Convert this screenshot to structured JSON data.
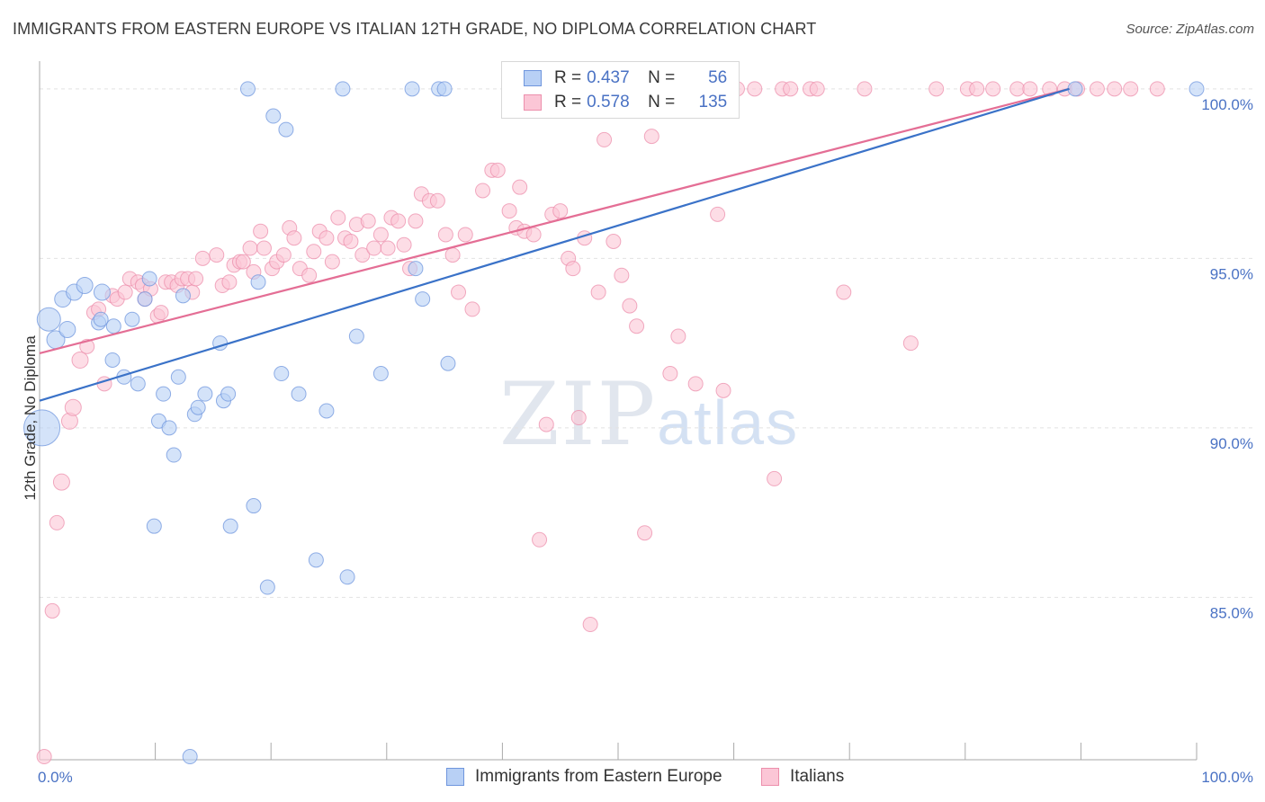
{
  "title": "IMMIGRANTS FROM EASTERN EUROPE VS ITALIAN 12TH GRADE, NO DIPLOMA CORRELATION CHART",
  "source": "Source: ZipAtlas.com",
  "watermark": {
    "zip": "ZIP",
    "atlas": "atlas"
  },
  "legend": {
    "r_label": "R =",
    "n_label": "N =",
    "series": [
      {
        "name": "Immigrants from Eastern Europe",
        "r": "0.437",
        "n": "56",
        "fill": "#b8d0f5",
        "stroke": "#6f96dd"
      },
      {
        "name": "Italians",
        "r": "0.578",
        "n": "135",
        "fill": "#fbc6d6",
        "stroke": "#ec8fac"
      }
    ]
  },
  "chart_data": {
    "type": "scatter",
    "ylabel": "12th Grade, No Diploma",
    "xlim": [
      0,
      100
    ],
    "ylim": [
      80.5,
      100.5
    ],
    "x_tick_labels": [
      "0.0%",
      "100.0%"
    ],
    "y_ticks": [
      {
        "value": 85,
        "label": "85.0%"
      },
      {
        "value": 90,
        "label": "90.0%"
      },
      {
        "value": 95,
        "label": "95.0%"
      },
      {
        "value": 100,
        "label": "100.0%"
      }
    ],
    "colors": {
      "blue": "#6f96dd",
      "blue_fill": "#b8d0f5",
      "blue_line": "#3a72c8",
      "pink": "#ec8fac",
      "pink_fill": "#fbc6d6",
      "pink_line": "#e46e95",
      "tick_text": "#4a72c4",
      "grid": "#e2e2e2"
    },
    "series": [
      {
        "name": "Immigrants from Eastern Europe",
        "trend": [
          [
            0,
            90.8
          ],
          [
            89,
            100
          ]
        ],
        "points": [
          [
            0.2,
            90.0,
            20
          ],
          [
            0.8,
            93.2,
            13
          ],
          [
            1.4,
            92.6,
            10
          ],
          [
            2,
            93.8,
            9
          ],
          [
            2.4,
            92.9,
            9
          ],
          [
            3,
            94,
            9
          ],
          [
            3.9,
            94.2,
            9
          ],
          [
            5.1,
            93.1,
            8
          ],
          [
            5.3,
            93.2,
            8
          ],
          [
            5.4,
            94,
            9
          ],
          [
            6.3,
            92,
            8
          ],
          [
            6.4,
            93,
            8
          ],
          [
            7.3,
            91.5,
            8
          ],
          [
            8,
            93.2,
            8
          ],
          [
            8.5,
            91.3,
            8
          ],
          [
            9.1,
            93.8,
            8
          ],
          [
            9.5,
            94.4,
            8
          ],
          [
            9.9,
            87.1,
            8
          ],
          [
            10.3,
            90.2,
            8
          ],
          [
            10.7,
            91,
            8
          ],
          [
            11.2,
            90,
            8
          ],
          [
            11.6,
            89.2,
            8
          ],
          [
            12,
            91.5,
            8
          ],
          [
            12.4,
            93.9,
            8
          ],
          [
            13,
            80.3,
            8
          ],
          [
            13.4,
            90.4,
            8
          ],
          [
            13.7,
            90.6,
            8
          ],
          [
            14.3,
            91,
            8
          ],
          [
            15.6,
            92.5,
            8
          ],
          [
            15.9,
            90.8,
            8
          ],
          [
            16.3,
            91,
            8
          ],
          [
            16.5,
            87.1,
            8
          ],
          [
            18,
            100,
            8
          ],
          [
            18.5,
            87.7,
            8
          ],
          [
            18.9,
            94.3,
            8
          ],
          [
            19.7,
            85.3,
            8
          ],
          [
            20.2,
            99.2,
            8
          ],
          [
            20.9,
            91.6,
            8
          ],
          [
            21.3,
            98.8,
            8
          ],
          [
            22.4,
            91,
            8
          ],
          [
            23.9,
            86.1,
            8
          ],
          [
            24.8,
            90.5,
            8
          ],
          [
            26.2,
            100,
            8
          ],
          [
            26.6,
            85.6,
            8
          ],
          [
            27.4,
            92.7,
            8
          ],
          [
            29.5,
            91.6,
            8
          ],
          [
            32.2,
            100,
            8
          ],
          [
            32.5,
            94.7,
            8
          ],
          [
            33.1,
            93.8,
            8
          ],
          [
            34.5,
            100,
            8
          ],
          [
            35,
            100,
            8
          ],
          [
            35.3,
            91.9,
            8
          ],
          [
            89.5,
            100,
            8
          ],
          [
            100,
            100,
            8
          ]
        ]
      },
      {
        "name": "Italians",
        "trend": [
          [
            0,
            92.2
          ],
          [
            89,
            100
          ]
        ],
        "points": [
          [
            0.4,
            80.3,
            8
          ],
          [
            1.1,
            84.6,
            8
          ],
          [
            1.5,
            87.2,
            8
          ],
          [
            1.9,
            88.4,
            9
          ],
          [
            2.6,
            90.2,
            9
          ],
          [
            2.9,
            90.6,
            9
          ],
          [
            3.5,
            92,
            9
          ],
          [
            4.1,
            92.4,
            8
          ],
          [
            4.7,
            93.4,
            8
          ],
          [
            5.1,
            93.5,
            8
          ],
          [
            5.6,
            91.3,
            8
          ],
          [
            6.3,
            93.9,
            8
          ],
          [
            6.7,
            93.8,
            8
          ],
          [
            7.4,
            94,
            8
          ],
          [
            7.8,
            94.4,
            8
          ],
          [
            8.5,
            94.3,
            8
          ],
          [
            8.9,
            94.2,
            8
          ],
          [
            9.1,
            93.8,
            8
          ],
          [
            9.6,
            94.1,
            8
          ],
          [
            10.2,
            93.3,
            8
          ],
          [
            10.5,
            93.4,
            8
          ],
          [
            10.9,
            94.3,
            8
          ],
          [
            11.4,
            94.3,
            8
          ],
          [
            11.9,
            94.2,
            8
          ],
          [
            12.3,
            94.4,
            8
          ],
          [
            12.8,
            94.4,
            8
          ],
          [
            13.2,
            94,
            8
          ],
          [
            13.5,
            94.4,
            8
          ],
          [
            14.1,
            95,
            8
          ],
          [
            15.3,
            95.1,
            8
          ],
          [
            15.8,
            94.2,
            8
          ],
          [
            16.4,
            94.3,
            8
          ],
          [
            16.8,
            94.8,
            8
          ],
          [
            17.3,
            94.9,
            8
          ],
          [
            17.6,
            94.9,
            8
          ],
          [
            18.2,
            95.3,
            8
          ],
          [
            18.5,
            94.6,
            8
          ],
          [
            19.1,
            95.8,
            8
          ],
          [
            19.4,
            95.3,
            8
          ],
          [
            20.1,
            94.7,
            8
          ],
          [
            20.5,
            94.9,
            8
          ],
          [
            21.1,
            95.1,
            8
          ],
          [
            21.6,
            95.9,
            8
          ],
          [
            22,
            95.6,
            8
          ],
          [
            22.5,
            94.7,
            8
          ],
          [
            23.3,
            94.5,
            8
          ],
          [
            23.7,
            95.2,
            8
          ],
          [
            24.2,
            95.8,
            8
          ],
          [
            24.8,
            95.6,
            8
          ],
          [
            25.3,
            94.9,
            8
          ],
          [
            25.8,
            96.2,
            8
          ],
          [
            26.4,
            95.6,
            8
          ],
          [
            26.9,
            95.5,
            8
          ],
          [
            27.4,
            96,
            8
          ],
          [
            27.9,
            95.1,
            8
          ],
          [
            28.4,
            96.1,
            8
          ],
          [
            28.9,
            95.3,
            8
          ],
          [
            29.5,
            95.7,
            8
          ],
          [
            30.1,
            95.3,
            8
          ],
          [
            30.4,
            96.2,
            8
          ],
          [
            31,
            96.1,
            8
          ],
          [
            31.5,
            95.4,
            8
          ],
          [
            32,
            94.7,
            8
          ],
          [
            32.5,
            96.1,
            8
          ],
          [
            33,
            96.9,
            8
          ],
          [
            33.7,
            96.7,
            8
          ],
          [
            34.4,
            96.7,
            8
          ],
          [
            35.1,
            95.7,
            8
          ],
          [
            35.7,
            95.1,
            8
          ],
          [
            36.2,
            94,
            8
          ],
          [
            36.8,
            95.7,
            8
          ],
          [
            37.4,
            93.5,
            8
          ],
          [
            38.3,
            97,
            8
          ],
          [
            39.1,
            97.6,
            8
          ],
          [
            39.6,
            97.6,
            8
          ],
          [
            40.6,
            96.4,
            8
          ],
          [
            41.2,
            95.9,
            8
          ],
          [
            41.5,
            97.1,
            8
          ],
          [
            41.9,
            95.8,
            8
          ],
          [
            42.7,
            95.7,
            8
          ],
          [
            43.2,
            86.7,
            8
          ],
          [
            43.8,
            90.1,
            8
          ],
          [
            44.3,
            96.3,
            8
          ],
          [
            45,
            96.4,
            8
          ],
          [
            45.7,
            95,
            8
          ],
          [
            46.1,
            94.7,
            8
          ],
          [
            46.6,
            90.3,
            8
          ],
          [
            47.1,
            95.6,
            8
          ],
          [
            47.6,
            84.2,
            8
          ],
          [
            48.3,
            94,
            8
          ],
          [
            48.8,
            98.5,
            8
          ],
          [
            49.6,
            95.5,
            8
          ],
          [
            50.3,
            94.5,
            8
          ],
          [
            51,
            93.6,
            8
          ],
          [
            51.6,
            93,
            8
          ],
          [
            51.8,
            99.5,
            8
          ],
          [
            52.3,
            86.9,
            8
          ],
          [
            52.9,
            98.6,
            8
          ],
          [
            53.4,
            99.7,
            8
          ],
          [
            54,
            99.6,
            8
          ],
          [
            54.7,
            100,
            8
          ],
          [
            55.3,
            99.9,
            8
          ],
          [
            56,
            100,
            8
          ],
          [
            57.2,
            100,
            8
          ],
          [
            58.8,
            100,
            8
          ],
          [
            60.3,
            100,
            8
          ],
          [
            61.8,
            100,
            8
          ],
          [
            63.5,
            88.5,
            8
          ],
          [
            64.2,
            100,
            8
          ],
          [
            64.9,
            100,
            8
          ],
          [
            66.6,
            100,
            8
          ],
          [
            67.2,
            100,
            8
          ],
          [
            69.5,
            94,
            8
          ],
          [
            71.3,
            100,
            8
          ],
          [
            75.3,
            92.5,
            8
          ],
          [
            77.5,
            100,
            8
          ],
          [
            80.2,
            100,
            8
          ],
          [
            81,
            100,
            8
          ],
          [
            82.4,
            100,
            8
          ],
          [
            84.5,
            100,
            8
          ],
          [
            85.6,
            100,
            8
          ],
          [
            87.3,
            100,
            8
          ],
          [
            88.6,
            100,
            8
          ],
          [
            89.7,
            100,
            8
          ],
          [
            91.4,
            100,
            8
          ],
          [
            92.9,
            100,
            8
          ],
          [
            94.3,
            100,
            8
          ],
          [
            96.6,
            100,
            8
          ],
          [
            54.5,
            91.6,
            8
          ],
          [
            55.2,
            92.7,
            8
          ],
          [
            56.7,
            91.3,
            8
          ],
          [
            59.1,
            91.1,
            8
          ],
          [
            58.6,
            96.3,
            8
          ]
        ]
      }
    ]
  }
}
